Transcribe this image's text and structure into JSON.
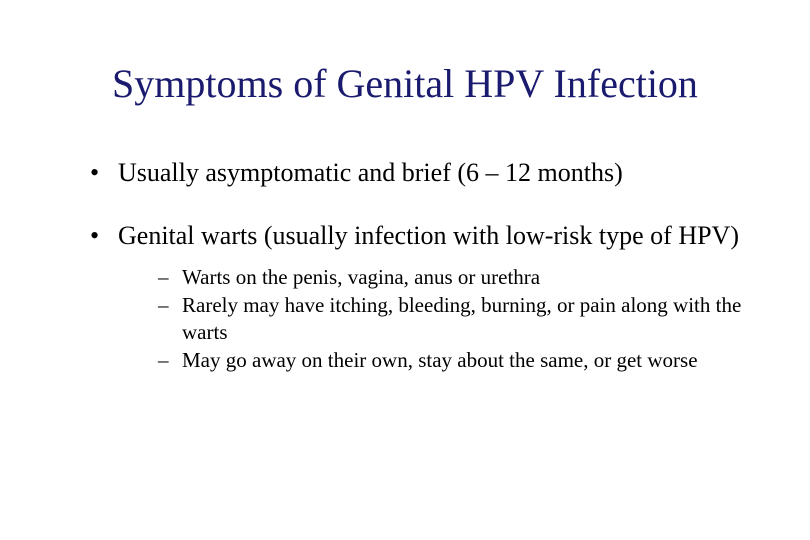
{
  "title": "Symptoms of Genital HPV Infection",
  "title_color": "#1a1a6e",
  "title_fontsize": 40,
  "body_color": "#000000",
  "background_color": "#ffffff",
  "bullets": [
    {
      "text": "Usually asymptomatic and brief (6 – 12 months)",
      "fontsize": 26,
      "subitems": []
    },
    {
      "text": "Genital warts (usually infection with low-risk type of HPV)",
      "fontsize": 26,
      "subitems": [
        {
          "text": "Warts on the penis, vagina, anus or urethra",
          "fontsize": 21
        },
        {
          "text": "Rarely may have itching, bleeding, burning, or pain along with the warts",
          "fontsize": 21
        },
        {
          "text": "May go away on their own, stay about the same, or get worse",
          "fontsize": 21
        }
      ]
    }
  ]
}
